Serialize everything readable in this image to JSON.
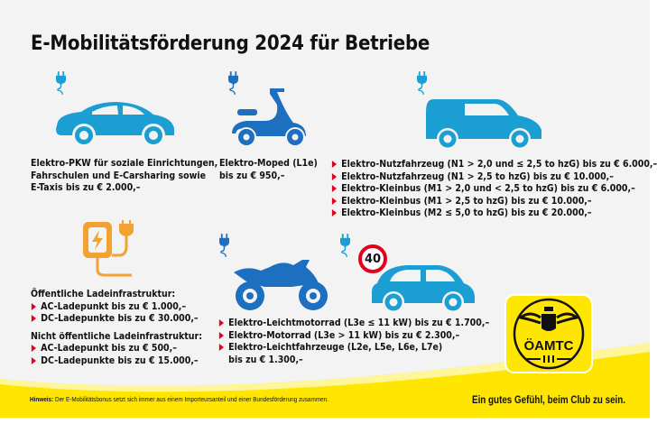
{
  "title": "E-Mobilitätsförderung 2024 für Betriebe",
  "colors": {
    "car_blue": "#1b9fd3",
    "moped_blue": "#1d6fbf",
    "orange": "#f1a230",
    "red": "#e2001a",
    "yellow": "#ffe600"
  },
  "car": {
    "lines": [
      "Elektro-PKW für soziale Einrichtungen,",
      "Fahrschulen und E-Carsharing sowie",
      "E-Taxis bis zu € 2.000,–"
    ]
  },
  "moped": {
    "lines": [
      "Elektro-Moped (L1e)",
      "bis zu € 950,–"
    ]
  },
  "van": {
    "items": [
      "Elektro-Nutzfahrzeug (N1 > 2,0 und ≤ 2,5 to hzG) bis zu € 6.000,–",
      "Elektro-Nutzfahrzeug (N1 > 2,5 to hzG) bis zu € 10.000,–",
      "Elektro-Kleinbus (M1 > 2,0 und < 2,5 to hzG) bis zu € 6.000,–",
      "Elektro-Kleinbus (M1 > 2,5 to hzG) bis zu € 10.000,–",
      "Elektro-Kleinbus (M2 ≤ 5,0 to hzG) bis zu € 20.000,–"
    ]
  },
  "charging": {
    "public_heading": "Öffentliche Ladeinfrastruktur:",
    "public_items": [
      "AC-Ladepunkt bis zu € 1.000,–",
      "DC-Ladepunkte bis zu € 30.000,–"
    ],
    "private_heading": "Nicht öffentliche Ladeinfrastruktur:",
    "private_items": [
      "AC-Ladepunkt bis zu € 500,–",
      "DC-Ladepunkte bis zu  € 15.000,–"
    ]
  },
  "motorcycle": {
    "items": [
      "Elektro-Leichtmotorrad (L3e ≤ 11 kW) bis zu € 1.700,–",
      "Elektro-Motorrad (L3e > 11 kW) bis zu € 2.300,–",
      "Elektro-Leichtfahrzeuge (L2e, L5e, L6e, L7e)"
    ],
    "last_line": "bis zu € 1.300,–"
  },
  "speed_sign": "40",
  "logo_text": "ÖAMTC",
  "footer": {
    "hint_label": "Hinweis:",
    "hint_text": " Der E-Mobilitätsbonus setzt sich immer aus einem Importeursanteil und einer Bundesförderung zusammen.",
    "slogan": "Ein gutes Gefühl, beim Club zu sein."
  }
}
